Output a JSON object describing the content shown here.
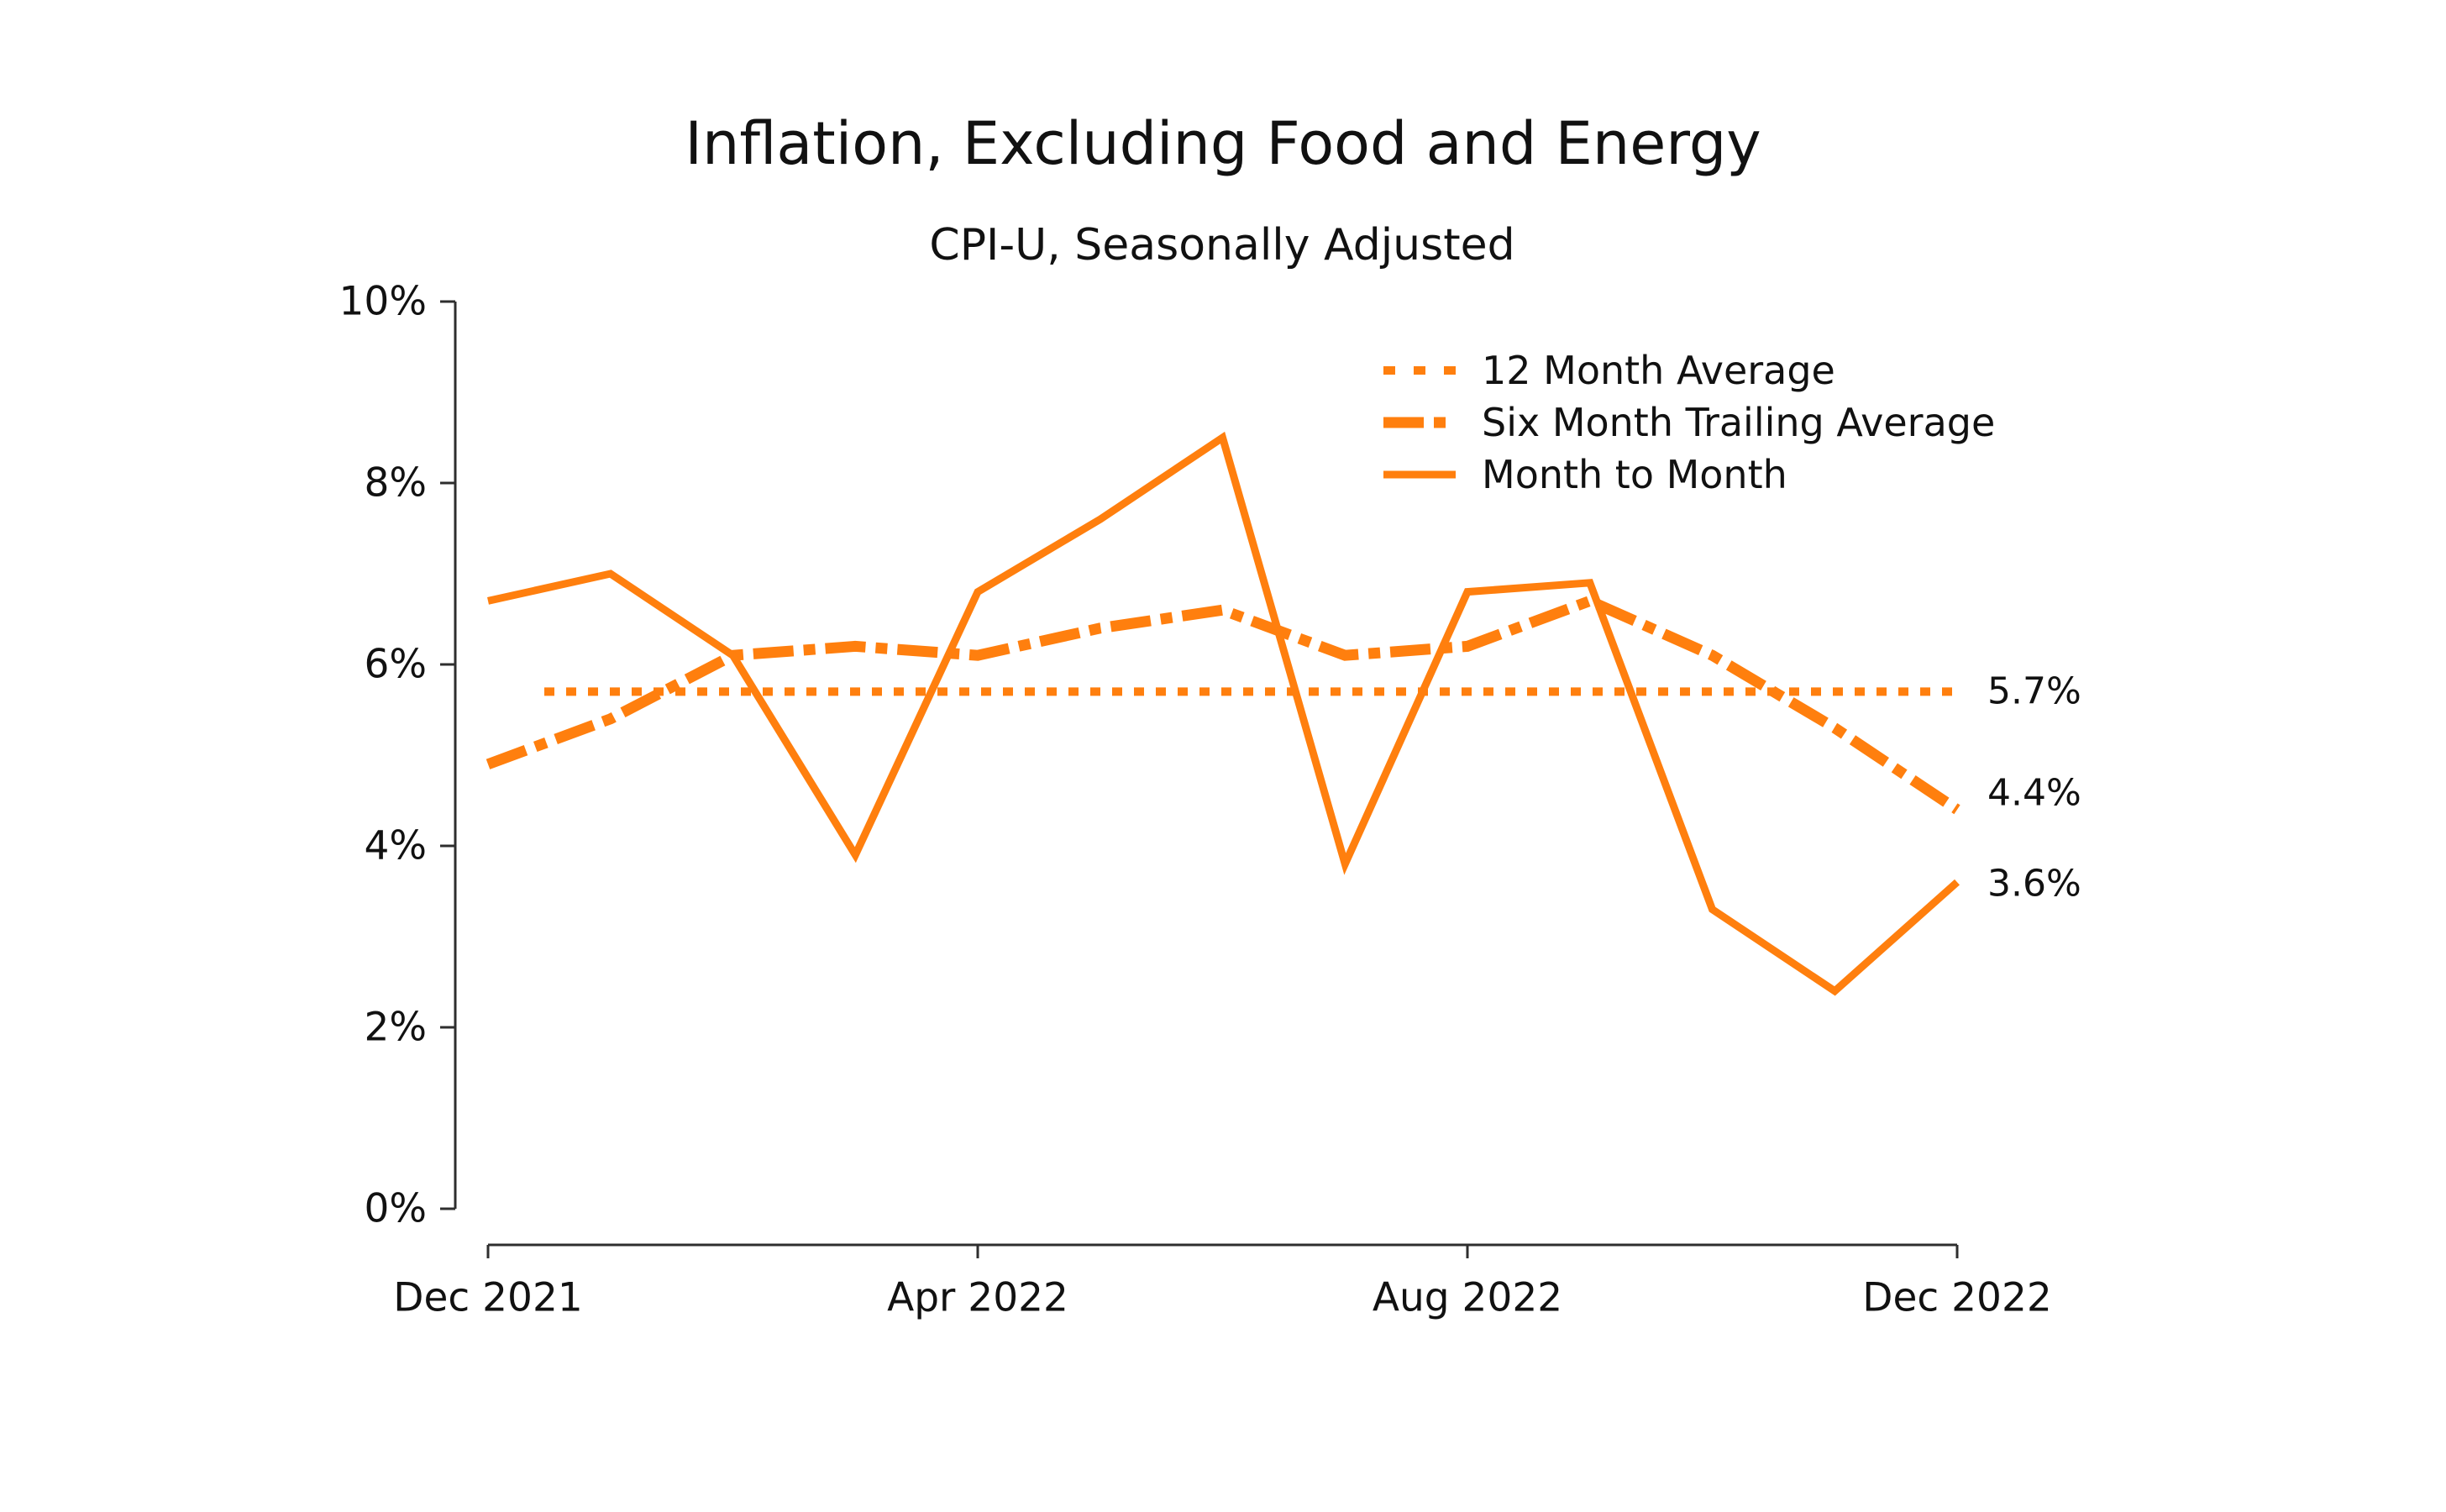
{
  "figure": {
    "title": "Inflation, Excluding Food and Energy",
    "subtitle": "CPI-U, Seasonally Adjusted"
  },
  "colors": {
    "series": "#ff7f0e",
    "text": "#111111",
    "spine": "#2e2e2e"
  },
  "legend": {
    "items": [
      {
        "label": "12 Month Average",
        "style": "dotted"
      },
      {
        "label": "Six Month Trailing Average",
        "style": "dashdot"
      },
      {
        "label": "Month to Month",
        "style": "solid"
      }
    ]
  },
  "end_labels": [
    {
      "text": "5.7%",
      "value": 5.7
    },
    {
      "text": "4.4%",
      "value": 4.4
    },
    {
      "text": "3.6%",
      "value": 3.6
    }
  ],
  "chart_data": {
    "type": "line",
    "title": "Inflation, Excluding Food and Energy",
    "subtitle": "CPI-U, Seasonally Adjusted",
    "x": [
      "Dec 2021",
      "Jan 2022",
      "Feb 2022",
      "Mar 2022",
      "Apr 2022",
      "May 2022",
      "Jun 2022",
      "Jul 2022",
      "Aug 2022",
      "Sep 2022",
      "Oct 2022",
      "Nov 2022",
      "Dec 2022"
    ],
    "x_tick_labels": [
      "Dec 2021",
      "Apr 2022",
      "Aug 2022",
      "Dec 2022"
    ],
    "x_tick_indices": [
      0,
      4,
      8,
      12
    ],
    "y_tick_labels": [
      "0%",
      "2%",
      "4%",
      "6%",
      "8%",
      "10%"
    ],
    "y_tick_values": [
      0,
      2,
      4,
      6,
      8,
      10
    ],
    "ylim": [
      0,
      10
    ],
    "grid": false,
    "legend_position": "upper right",
    "units": "percent",
    "series": [
      {
        "name": "12 Month Average",
        "style": "dotted",
        "x_start_offset": 0.46,
        "values": [
          5.7,
          5.7,
          5.7,
          5.7,
          5.7,
          5.7,
          5.7,
          5.7,
          5.7,
          5.7,
          5.7,
          5.7,
          5.7
        ],
        "end_label": "5.7%"
      },
      {
        "name": "Six Month Trailing Average",
        "style": "dashdot",
        "values": [
          4.9,
          5.4,
          6.1,
          6.2,
          6.1,
          6.4,
          6.6,
          6.1,
          6.2,
          6.7,
          6.1,
          5.3,
          4.4
        ],
        "end_label": "4.4%"
      },
      {
        "name": "Month to Month",
        "style": "solid",
        "values": [
          6.7,
          7.0,
          6.1,
          3.9,
          6.8,
          7.6,
          8.5,
          3.8,
          6.8,
          6.9,
          3.3,
          2.4,
          3.6
        ],
        "end_label": "3.6%"
      }
    ]
  }
}
